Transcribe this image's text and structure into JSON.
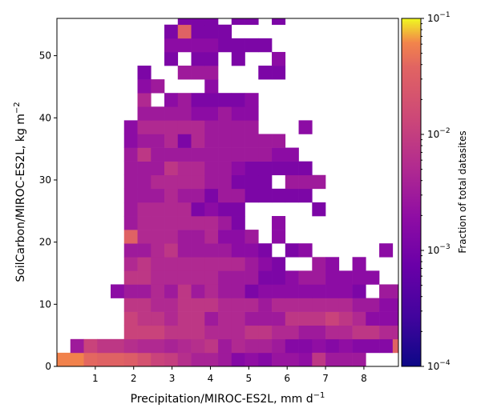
{
  "chart_data": {
    "type": "heatmap",
    "title": "",
    "xlabel": "Precipitation/MIROC-ES2L,  mm d",
    "xlabel_sup": "−1",
    "ylabel": "SoilCarbon/MIROC-ES2L,  kg m",
    "ylabel_sup": "−2",
    "x_ticks": [
      1,
      2,
      3,
      4,
      5,
      6,
      7,
      8
    ],
    "y_ticks": [
      0,
      10,
      20,
      30,
      40,
      50
    ],
    "xlim": [
      0,
      8.9
    ],
    "ylim": [
      0,
      56
    ],
    "bin_width_x": 0.35,
    "bin_height_y": 2.2,
    "colorbar": {
      "label": "Fraction of total datasites",
      "scale": "log",
      "range": [
        0.0001,
        0.1
      ],
      "tick_bases": [
        "10",
        "10",
        "10",
        "10"
      ],
      "tick_exps": [
        "−4",
        "−3",
        "−2",
        "−1"
      ],
      "colormap": "plasma"
    },
    "bin_rows": [
      [
        0,
        "12222221999888666877555000000000000"
      ],
      [
        1,
        "0112221198777665678789111211211444"
      ],
      [
        2,
        "00000888777666776655667766535445460"
      ],
      [
        3,
        "00000877677566555777876444555455040"
      ],
      [
        4,
        "00000776677766656666665544445350000"
      ],
      [
        5,
        "00004556575655344444443055435330000"
      ],
      [
        6,
        "00000776666655533455444400054300000"
      ],
      [
        7,
        "00000676666666543005404000003000000"
      ],
      [
        8,
        "00000556755554430340000040000000000"
      ],
      [
        9,
        "00000266655644504000000000005000000"
      ],
      [
        10,
        "00000566666653004000000000000000000"
      ],
      [
        11,
        "00000566663433000003000000000000000"
      ],
      [
        12,
        "00000555655355333330000000000000000"
      ],
      [
        13,
        "00000556666553330555000000000000000"
      ],
      [
        14,
        "00000555766554333330000000000000000"
      ],
      [
        15,
        "00000575555555554400000000000000000"
      ],
      [
        16,
        "00000455636555555000000000000000000"
      ],
      [
        17,
        "00000466666555500040000000000000000"
      ],
      [
        18,
        "00000055554454400000000000000000000"
      ],
      [
        19,
        "00000060453333400000000000000000000"
      ],
      [
        20,
        "00000045000400000000000000000000000"
      ],
      [
        21,
        "00000030055500033000000000000000000"
      ],
      [
        22,
        "00000000303303004000000000000000000"
      ],
      [
        23,
        "00000000444433330000000000000000000"
      ],
      [
        24,
        "00000000323330000000000000000000000"
      ],
      [
        25,
        "00000000033303303000000000000000000"
      ],
      [
        26,
        "00000000000000000000000000000000000"
      ]
    ],
    "bins": [
      [
        0,
        0,
        0.06
      ],
      [
        0.35,
        0,
        0.06
      ],
      [
        0.7,
        0,
        0.04
      ],
      [
        1.05,
        0,
        0.035
      ],
      [
        1.4,
        0,
        0.035
      ],
      [
        1.75,
        0,
        0.03
      ],
      [
        2.1,
        0,
        0.02
      ],
      [
        2.45,
        0,
        0.012
      ],
      [
        2.8,
        0,
        0.01
      ],
      [
        3.15,
        0,
        0.006
      ],
      [
        3.5,
        0,
        0.004
      ],
      [
        3.85,
        0,
        0.004
      ],
      [
        4.2,
        0,
        0.003
      ],
      [
        4.55,
        0,
        0.0015
      ],
      [
        4.9,
        0,
        0.002
      ],
      [
        5.25,
        0,
        0.0015
      ],
      [
        5.6,
        0,
        0.0025
      ],
      [
        5.95,
        0,
        0.0025
      ],
      [
        6.3,
        0,
        0.002
      ],
      [
        0.35,
        2.2,
        0.003
      ],
      [
        0.7,
        2.2,
        0.012
      ],
      [
        1.05,
        2.2,
        0.008
      ],
      [
        1.4,
        2.2,
        0.008
      ],
      [
        1.75,
        2.2,
        0.006
      ],
      [
        2.1,
        2.2,
        0.005
      ],
      [
        2.45,
        2.2,
        0.005
      ],
      [
        2.8,
        2.2,
        0.004
      ],
      [
        3.15,
        2.2,
        0.005
      ],
      [
        3.5,
        2.2,
        0.006
      ],
      [
        3.85,
        2.2,
        0.008
      ],
      [
        4.2,
        2.2,
        0.003
      ],
      [
        4.55,
        2.2,
        0.005
      ],
      [
        4.9,
        2.2,
        0.004
      ],
      [
        5.25,
        2.2,
        0.004
      ],
      [
        5.6,
        2.2,
        0.003
      ],
      [
        5.95,
        2.2,
        0.0015
      ],
      [
        6.3,
        2.2,
        0.0015
      ],
      [
        6.65,
        2.2,
        0.002
      ],
      [
        7.0,
        2.2,
        0.0015
      ],
      [
        7.35,
        2.2,
        0.002
      ],
      [
        7.7,
        2.2,
        0.0015
      ],
      [
        8.05,
        2.2,
        0.0015
      ],
      [
        8.4,
        2.2,
        0.0015
      ]
    ]
  }
}
